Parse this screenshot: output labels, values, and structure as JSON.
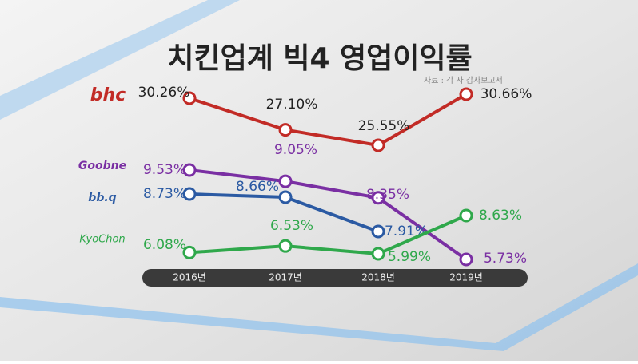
{
  "chart_data": {
    "type": "line",
    "title": "치킨업계 빅4 영업이익률",
    "source": "자료 : 각 사 감사보고서",
    "categories": [
      "2016년",
      "2017년",
      "2018년",
      "2019년"
    ],
    "series": [
      {
        "name": "bhc",
        "color": "#c22b26",
        "values": [
          30.26,
          27.1,
          25.55,
          30.66
        ],
        "value_labels": [
          "30.26%",
          "27.10%",
          "25.55%",
          "30.66%"
        ]
      },
      {
        "name": "Goobne",
        "color": "#7a2fa3",
        "values": [
          9.53,
          9.05,
          8.35,
          5.73
        ],
        "value_labels": [
          "9.53%",
          "9.05%",
          "8.35%",
          "5.73%"
        ]
      },
      {
        "name": "bb.q",
        "color": "#2b5aa3",
        "values": [
          8.73,
          8.66,
          7.91,
          null
        ],
        "value_labels": [
          "8.73%",
          "8.66%",
          "7.91%",
          null
        ]
      },
      {
        "name": "KyoChon",
        "color": "#2fa84b",
        "values": [
          6.08,
          6.53,
          5.99,
          8.63
        ],
        "value_labels": [
          "6.08%",
          "6.53%",
          "5.99%",
          "8.63%"
        ]
      }
    ]
  }
}
